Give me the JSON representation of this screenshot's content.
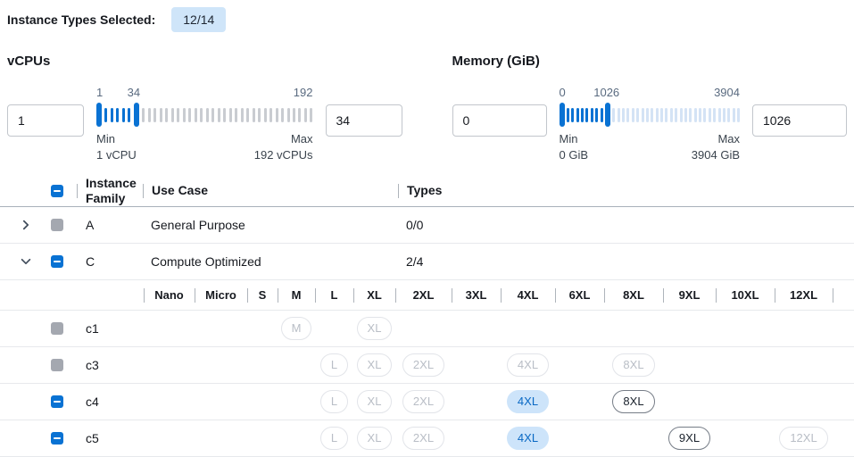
{
  "header": {
    "label": "Instance Types Selected:",
    "badge": "12/14"
  },
  "colors": {
    "accent": "#0972d3",
    "badge_bg": "#cfe5f9",
    "selected_pill_bg": "#cde4fa",
    "selected_pill_text": "#0868c4",
    "disabled_checkbox": "#a4a8b0"
  },
  "filters": [
    {
      "id": "vcpus",
      "label": "vCPUs",
      "low_value": "1",
      "high_value": "34",
      "slider": {
        "range_min": 1,
        "range_max": 192,
        "low": 1,
        "high": 34,
        "low_label": "1",
        "high_label": "34",
        "range_max_label": "192",
        "min_caption_title": "Min",
        "min_caption_value": "1 vCPU",
        "max_caption_title": "Max",
        "max_caption_value": "192 vCPUs",
        "inactive_tick_color": "#c9ccd1"
      }
    },
    {
      "id": "memory",
      "label": "Memory (GiB)",
      "low_value": "0",
      "high_value": "1026",
      "slider": {
        "range_min": 0,
        "range_max": 3904,
        "low": 0,
        "high": 1026,
        "low_label": "0",
        "high_label": "1026",
        "range_max_label": "3904",
        "min_caption_title": "Min",
        "min_caption_value": "0 GiB",
        "max_caption_title": "Max",
        "max_caption_value": "3904 GiB",
        "inactive_tick_color": "#d4e3f5"
      }
    }
  ],
  "table": {
    "select_all_state": "indeterminate",
    "columns": {
      "family": "Instance Family",
      "use_case": "Use Case",
      "types": "Types"
    },
    "families": [
      {
        "letter": "A",
        "use_case": "General Purpose",
        "types_count": "0/0",
        "expanded": false,
        "checkbox": "disabled"
      },
      {
        "letter": "C",
        "use_case": "Compute Optimized",
        "types_count": "2/4",
        "expanded": true,
        "checkbox": "indeterminate"
      }
    ],
    "sizes": [
      "Nano",
      "Micro",
      "S",
      "M",
      "L",
      "XL",
      "2XL",
      "3XL",
      "4XL",
      "6XL",
      "8XL",
      "9XL",
      "10XL",
      "12XL"
    ],
    "instances": [
      {
        "name": "c1",
        "checkbox": "disabled",
        "types": [
          {
            "size": "M",
            "state": "disabled"
          },
          {
            "size": "XL",
            "state": "disabled"
          }
        ]
      },
      {
        "name": "c3",
        "checkbox": "disabled",
        "types": [
          {
            "size": "L",
            "state": "disabled"
          },
          {
            "size": "XL",
            "state": "disabled"
          },
          {
            "size": "2XL",
            "state": "disabled"
          },
          {
            "size": "4XL",
            "state": "disabled"
          },
          {
            "size": "8XL",
            "state": "disabled"
          }
        ]
      },
      {
        "name": "c4",
        "checkbox": "indeterminate",
        "types": [
          {
            "size": "L",
            "state": "disabled"
          },
          {
            "size": "XL",
            "state": "disabled"
          },
          {
            "size": "2XL",
            "state": "disabled"
          },
          {
            "size": "4XL",
            "state": "selected"
          },
          {
            "size": "8XL",
            "state": "enabled"
          }
        ]
      },
      {
        "name": "c5",
        "checkbox": "indeterminate",
        "types": [
          {
            "size": "L",
            "state": "disabled"
          },
          {
            "size": "XL",
            "state": "disabled"
          },
          {
            "size": "2XL",
            "state": "disabled"
          },
          {
            "size": "4XL",
            "state": "selected"
          },
          {
            "size": "9XL",
            "state": "enabled"
          },
          {
            "size": "12XL",
            "state": "disabled"
          }
        ]
      }
    ]
  }
}
